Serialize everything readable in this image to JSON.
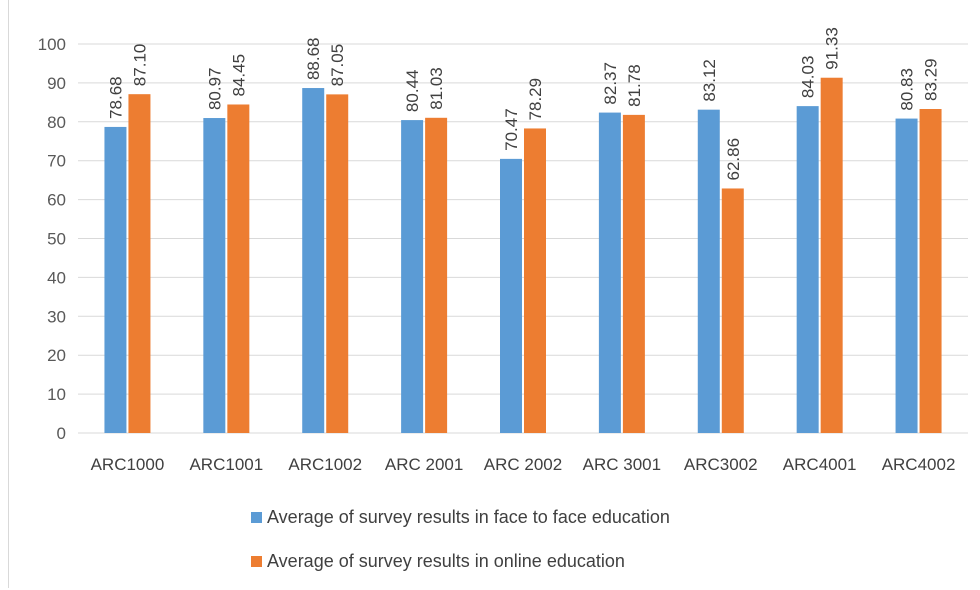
{
  "chart_data": {
    "type": "bar",
    "categories": [
      "ARC1000",
      "ARC1001",
      "ARC1002",
      "ARC 2001",
      "ARC 2002",
      "ARC 3001",
      "ARC3002",
      "ARC4001",
      "ARC4002"
    ],
    "series": [
      {
        "name": "Average of survey results in face to face education",
        "color": "#5b9bd5",
        "values": [
          78.68,
          80.97,
          88.68,
          80.44,
          70.47,
          82.37,
          83.12,
          84.03,
          80.83
        ],
        "labels": [
          "78.68",
          "80.97",
          "88.68",
          "80.44",
          "70.47",
          "82.37",
          "83.12",
          "84.03",
          "80.83"
        ]
      },
      {
        "name": "Average of survey results in online education",
        "color": "#ed7d31",
        "values": [
          87.1,
          84.45,
          87.05,
          81.03,
          78.29,
          81.78,
          62.86,
          91.33,
          83.29
        ],
        "labels": [
          "87.10",
          "84.45",
          "87.05",
          "81.03",
          "78.29",
          "81.78",
          "62.86",
          "91.33",
          "83.29"
        ]
      }
    ],
    "yticks": [
      "0",
      "10",
      "20",
      "30",
      "40",
      "50",
      "60",
      "70",
      "80",
      "90",
      "100"
    ],
    "ylim": [
      0,
      100
    ],
    "grid": true,
    "legend_position": "bottom"
  }
}
